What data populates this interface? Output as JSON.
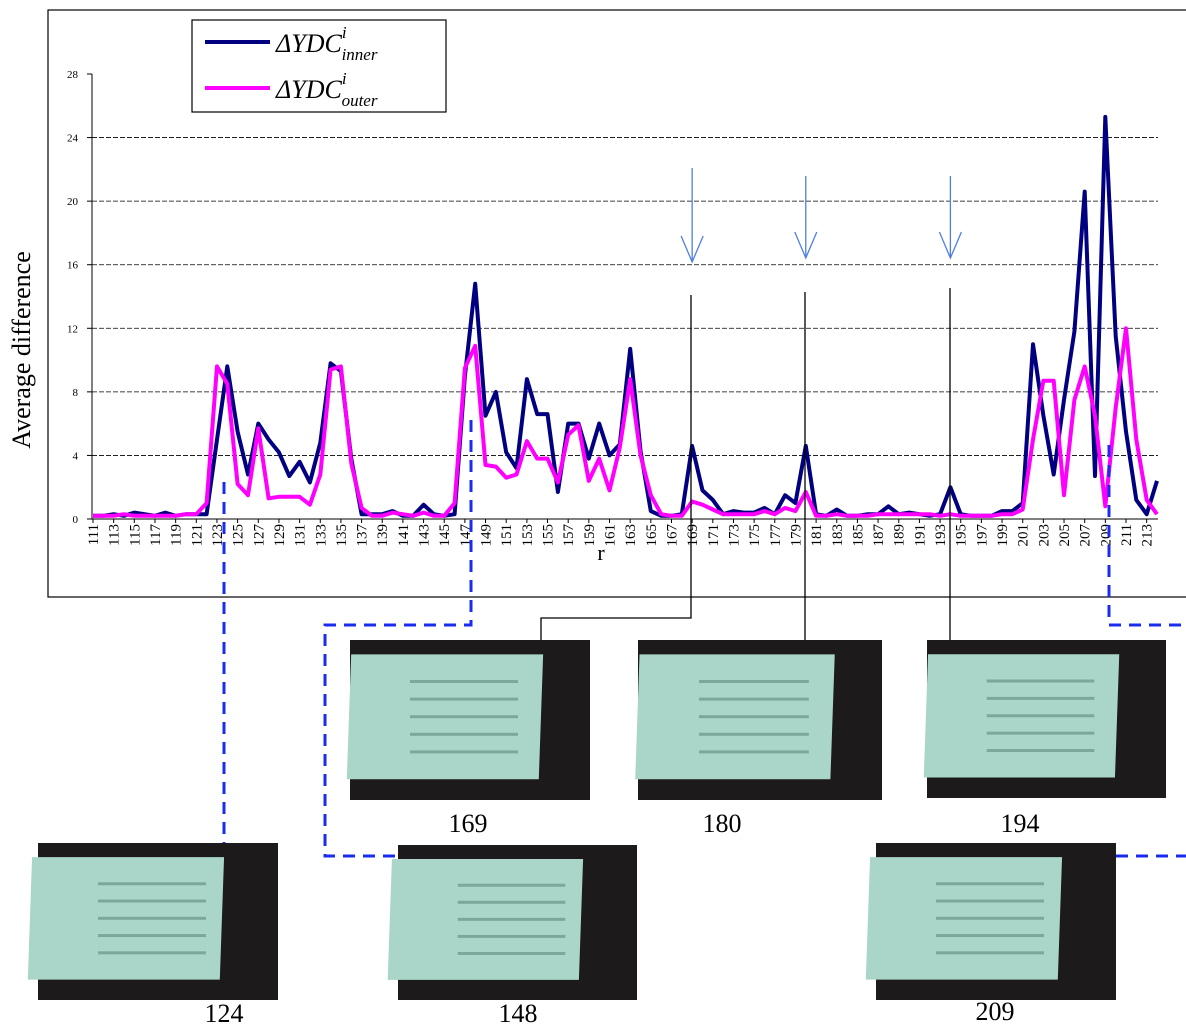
{
  "chart_data": {
    "type": "line",
    "xlabel": "r",
    "ylabel": "Average difference",
    "x": [
      111,
      112,
      113,
      114,
      115,
      116,
      117,
      118,
      119,
      120,
      121,
      122,
      123,
      124,
      125,
      126,
      127,
      128,
      129,
      130,
      131,
      132,
      133,
      134,
      135,
      136,
      137,
      138,
      139,
      140,
      141,
      142,
      143,
      144,
      145,
      146,
      147,
      148,
      149,
      150,
      151,
      152,
      153,
      154,
      155,
      156,
      157,
      158,
      159,
      160,
      161,
      162,
      163,
      164,
      165,
      166,
      167,
      168,
      169,
      170,
      171,
      172,
      173,
      174,
      175,
      176,
      177,
      178,
      179,
      180,
      181,
      182,
      183,
      184,
      185,
      186,
      187,
      188,
      189,
      190,
      191,
      192,
      193,
      194,
      195,
      196,
      197,
      198,
      199,
      200,
      201,
      202,
      203,
      204,
      205,
      206,
      207,
      208,
      209,
      210,
      211,
      212,
      213,
      214
    ],
    "series": [
      {
        "name": "ΔYDC",
        "superscript": "i",
        "subscript": "inner",
        "color": "#000080",
        "values": [
          0.2,
          0.2,
          0.3,
          0.2,
          0.4,
          0.3,
          0.2,
          0.4,
          0.2,
          0.3,
          0.3,
          0.3,
          5,
          9.6,
          5.5,
          2.8,
          6,
          5,
          4.2,
          2.7,
          3.6,
          2.3,
          4.8,
          9.8,
          9.3,
          3.8,
          0.3,
          0.3,
          0.3,
          0.5,
          0.2,
          0.2,
          0.9,
          0.3,
          0.2,
          0.3,
          9,
          14.8,
          6.5,
          8,
          4.2,
          3.2,
          8.8,
          6.6,
          6.6,
          1.7,
          6,
          6,
          3.8,
          6,
          4,
          4.7,
          10.7,
          4.3,
          0.5,
          0.2,
          0.2,
          0.3,
          4.6,
          1.8,
          1.2,
          0.3,
          0.5,
          0.4,
          0.4,
          0.7,
          0.3,
          1.5,
          1,
          4.6,
          0.3,
          0.2,
          0.6,
          0.2,
          0.2,
          0.3,
          0.3,
          0.8,
          0.3,
          0.4,
          0.3,
          0.2,
          0.3,
          2,
          0.3,
          0.2,
          0.2,
          0.2,
          0.5,
          0.5,
          1,
          11,
          6.5,
          2.8,
          7.5,
          11.8,
          20.6,
          2.7,
          25.3,
          11.5,
          5.5,
          1.2,
          0.3,
          2.4
        ]
      },
      {
        "name": "ΔYDC",
        "superscript": "i",
        "subscript": "outer",
        "color": "#ff00ff",
        "values": [
          0.2,
          0.2,
          0.2,
          0.3,
          0.2,
          0.2,
          0.2,
          0.2,
          0.2,
          0.3,
          0.3,
          1,
          9.6,
          8.5,
          2.2,
          1.5,
          5.7,
          1.3,
          1.4,
          1.4,
          1.4,
          0.9,
          2.8,
          9.4,
          9.6,
          3.5,
          0.7,
          0.2,
          0.2,
          0.4,
          0.3,
          0.2,
          0.4,
          0.2,
          0.2,
          1,
          9.5,
          10.9,
          3.4,
          3.3,
          2.6,
          2.8,
          4.9,
          3.8,
          3.8,
          2.3,
          5.3,
          5.9,
          2.4,
          3.8,
          1.8,
          4.5,
          8.8,
          4,
          1.5,
          0.3,
          0.2,
          0.2,
          1.1,
          0.9,
          0.6,
          0.3,
          0.3,
          0.3,
          0.3,
          0.5,
          0.3,
          0.7,
          0.5,
          1.7,
          0.2,
          0.2,
          0.3,
          0.2,
          0.2,
          0.2,
          0.3,
          0.3,
          0.3,
          0.3,
          0.3,
          0.3,
          0.2,
          0.3,
          0.2,
          0.2,
          0.2,
          0.2,
          0.3,
          0.3,
          0.6,
          5,
          8.7,
          8.7,
          1.5,
          7.5,
          9.6,
          6.5,
          0.8,
          7,
          12,
          5,
          1.2,
          0.3
        ]
      }
    ],
    "xlim": [
      111,
      214
    ],
    "xticks": [
      111,
      113,
      115,
      117,
      119,
      121,
      123,
      125,
      127,
      129,
      131,
      133,
      135,
      137,
      139,
      141,
      143,
      145,
      147,
      149,
      151,
      153,
      155,
      157,
      159,
      161,
      163,
      165,
      167,
      169,
      171,
      173,
      175,
      177,
      179,
      181,
      183,
      185,
      187,
      189,
      191,
      193,
      195,
      197,
      199,
      201,
      203,
      205,
      207,
      209,
      211,
      213
    ],
    "ylim": [
      0,
      28
    ],
    "yticks": [
      0,
      4,
      8,
      12,
      16,
      20,
      24,
      28
    ],
    "grid": true,
    "legend": "top-left",
    "arrow_color": "#4f7fe0",
    "arrows": [
      169,
      180,
      194
    ],
    "thumbnails": [
      169,
      180,
      194,
      124,
      148,
      209
    ]
  }
}
